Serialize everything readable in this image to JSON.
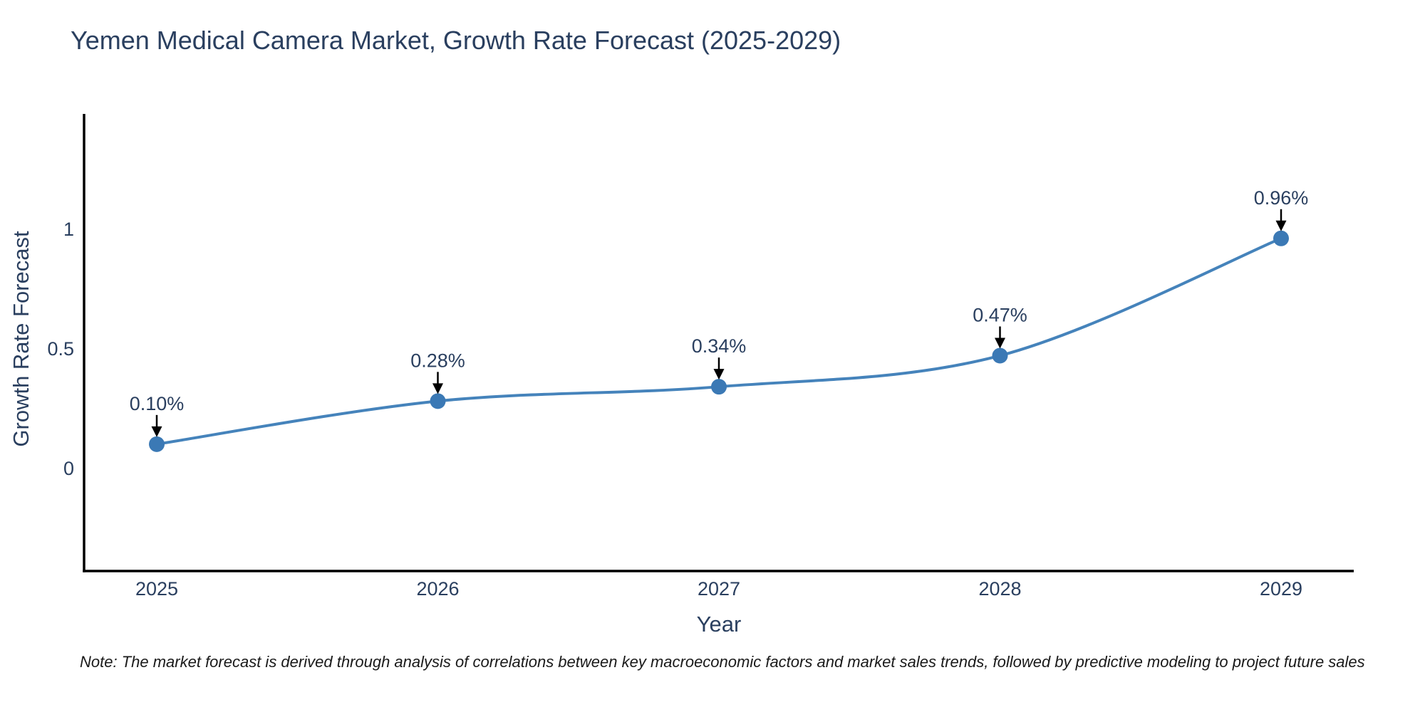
{
  "figure": {
    "note": "Note: The market forecast is derived through analysis of correlations between key macroeconomic factors and market sales trends, followed by predictive modeling to project future sales"
  },
  "chart_data": {
    "type": "line",
    "title": "Yemen Medical Camera Market, Growth Rate Forecast (2025-2029)",
    "xlabel": "Year",
    "ylabel": "Growth Rate Forecast",
    "categories": [
      "2025",
      "2026",
      "2027",
      "2028",
      "2029"
    ],
    "series": [
      {
        "name": "Growth Rate Forecast",
        "values": [
          0.1,
          0.28,
          0.34,
          0.47,
          0.96
        ],
        "point_labels": [
          "0.10%",
          "0.28%",
          "0.34%",
          "0.47%",
          "0.96%"
        ]
      }
    ],
    "line_shape": "spline",
    "markers": true,
    "annotation_arrows": true,
    "yticks": {
      "values": [
        0,
        0.5,
        1
      ],
      "labels": [
        "0",
        "0.5",
        "1"
      ]
    },
    "ylim": [
      -0.43,
      1.48
    ],
    "grid": false,
    "legend": "none",
    "colors": {
      "line": "#4583bb",
      "marker": "#3b79b5",
      "axis": "#000000",
      "arrow": "#000000",
      "label_text": "#2a3f5f",
      "note_text": "#1a1a1a",
      "background": "#ffffff"
    }
  }
}
